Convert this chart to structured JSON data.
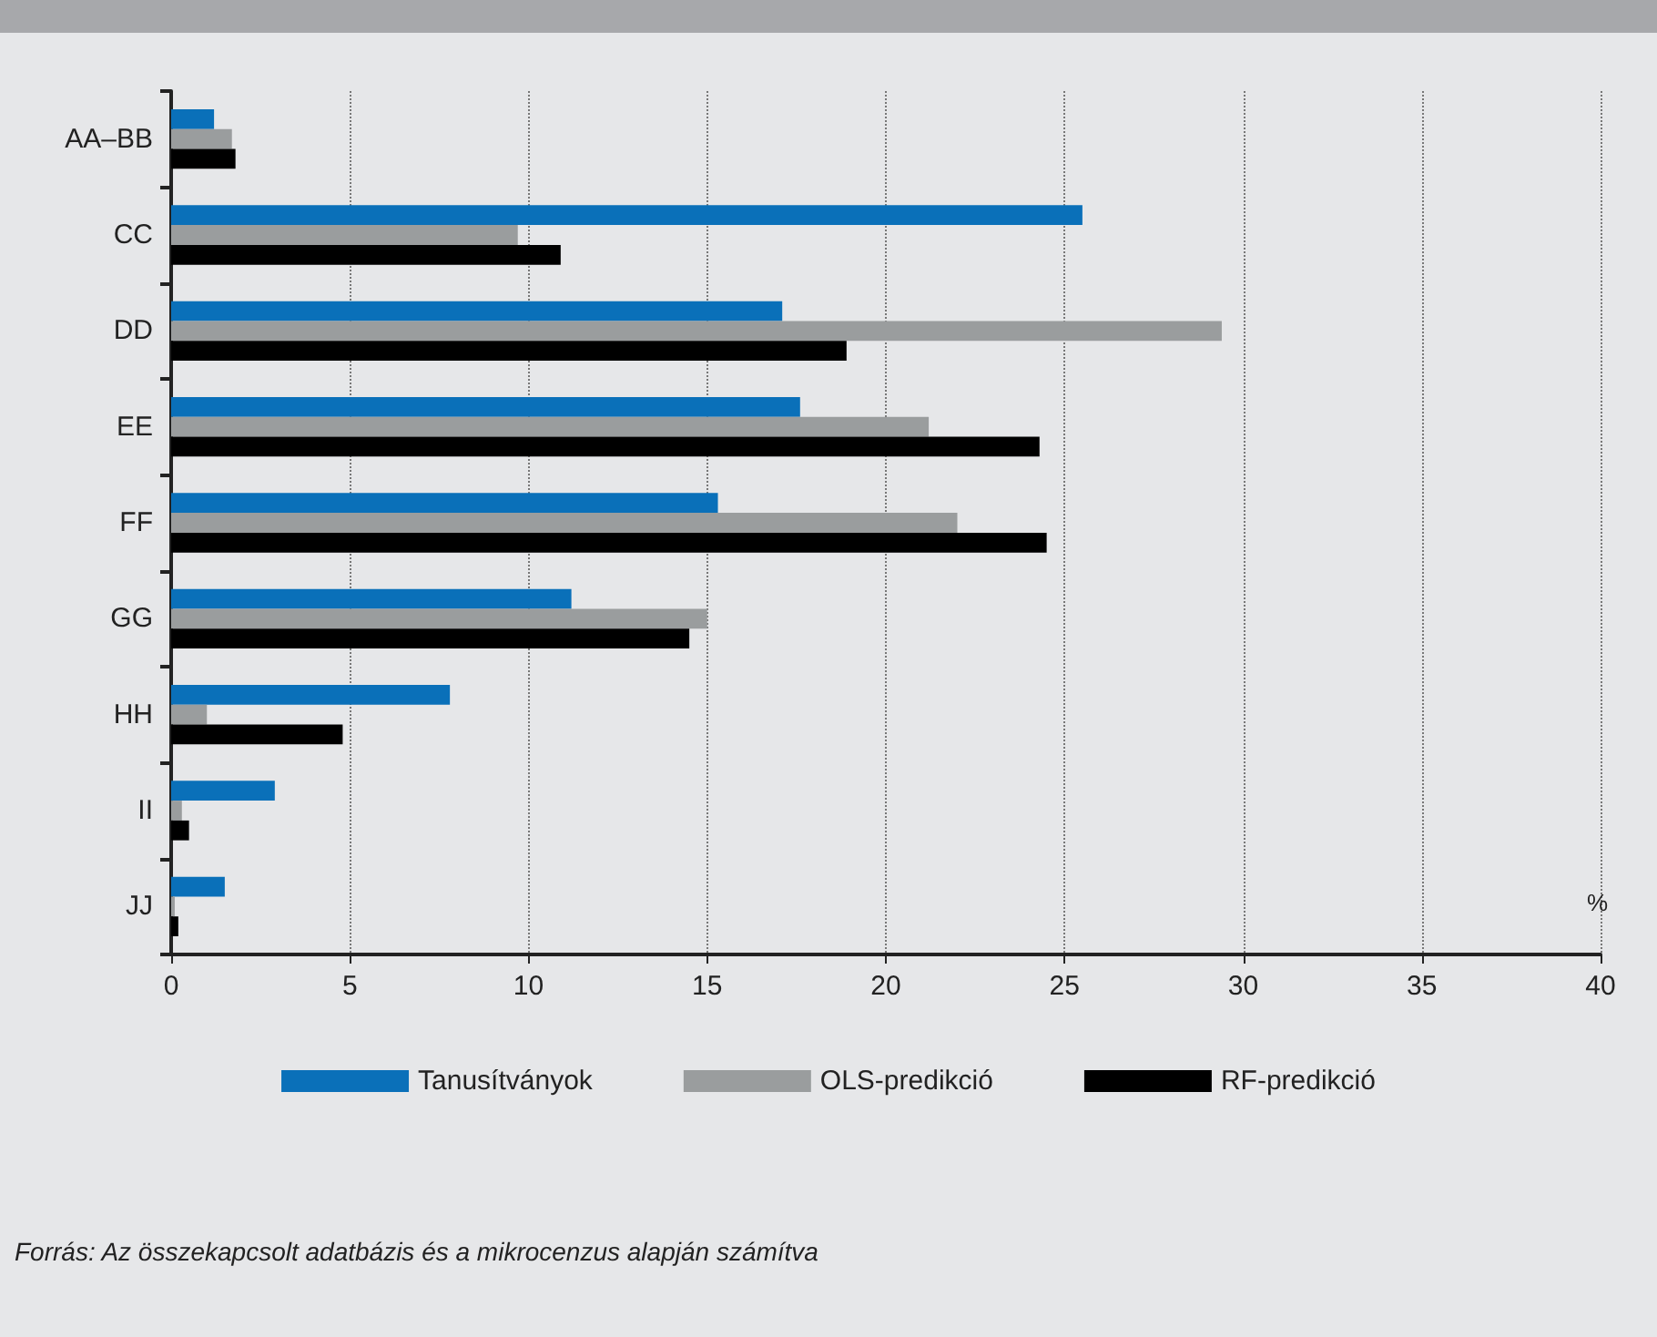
{
  "chart_data": {
    "type": "bar",
    "orientation": "horizontal",
    "xlabel": "%",
    "categories": [
      "AA–BB",
      "CC",
      "DD",
      "EE",
      "FF",
      "GG",
      "HH",
      "II",
      "JJ"
    ],
    "series": [
      {
        "name": "Tanusítványok",
        "color": "#0a70b9",
        "values": [
          1.2,
          25.5,
          17.1,
          17.6,
          15.3,
          11.2,
          7.8,
          2.9,
          1.5
        ]
      },
      {
        "name": "OLS-predikció",
        "color": "#9a9d9e",
        "values": [
          1.7,
          9.7,
          29.4,
          21.2,
          22.0,
          15.0,
          1.0,
          0.3,
          0.1
        ]
      },
      {
        "name": "RF-predikció",
        "color": "#000000",
        "values": [
          1.8,
          10.9,
          18.9,
          24.3,
          24.5,
          14.5,
          4.8,
          0.5,
          0.2
        ]
      }
    ],
    "xlim": [
      0,
      40
    ],
    "xticks": [
      0,
      5,
      10,
      15,
      20,
      25,
      30,
      35,
      40
    ],
    "grid": "x",
    "legend": "bottom",
    "annotations": [
      "Forrás: Az összekapcsolt adatbázis és a mikrocenzus alapján számítva"
    ]
  }
}
